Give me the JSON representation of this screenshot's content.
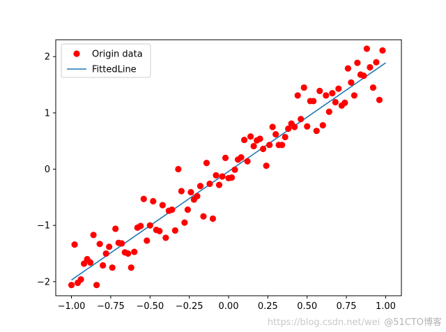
{
  "chart_data": {
    "type": "scatter",
    "title": "",
    "xlabel": "",
    "ylabel": "",
    "xlim": [
      -1.1,
      1.1
    ],
    "ylim": [
      -2.25,
      2.3
    ],
    "xticks": [
      -1.0,
      -0.75,
      -0.5,
      -0.25,
      0.0,
      0.25,
      0.5,
      0.75,
      1.0
    ],
    "yticks": [
      -2,
      -1,
      0,
      1,
      2
    ],
    "xtick_labels": [
      "−1.00",
      "−0.75",
      "−0.50",
      "−0.25",
      "0.00",
      "0.25",
      "0.50",
      "0.75",
      "1.00"
    ],
    "ytick_labels": [
      "−2",
      "−1",
      "0",
      "1",
      "2"
    ],
    "grid": false,
    "legend_placement": "top-left",
    "series": [
      {
        "name": "Origin data",
        "kind": "scatter",
        "color": "#ff0000",
        "points": [
          [
            -1.0,
            -2.06
          ],
          [
            -0.98,
            -1.34
          ],
          [
            -0.96,
            -2.02
          ],
          [
            -0.94,
            -1.96
          ],
          [
            -0.92,
            -1.68
          ],
          [
            -0.9,
            -1.6
          ],
          [
            -0.88,
            -1.66
          ],
          [
            -0.86,
            -1.17
          ],
          [
            -0.84,
            -2.06
          ],
          [
            -0.82,
            -1.33
          ],
          [
            -0.8,
            -1.71
          ],
          [
            -0.78,
            -1.5
          ],
          [
            -0.76,
            -1.38
          ],
          [
            -0.74,
            -1.75
          ],
          [
            -0.72,
            -1.06
          ],
          [
            -0.7,
            -1.31
          ],
          [
            -0.68,
            -1.32
          ],
          [
            -0.66,
            -1.48
          ],
          [
            -0.64,
            -1.5
          ],
          [
            -0.62,
            -1.75
          ],
          [
            -0.6,
            -1.47
          ],
          [
            -0.58,
            -1.04
          ],
          [
            -0.56,
            -1.01
          ],
          [
            -0.54,
            -0.53
          ],
          [
            -0.52,
            -1.27
          ],
          [
            -0.5,
            -1.0
          ],
          [
            -0.48,
            -0.57
          ],
          [
            -0.46,
            -1.08
          ],
          [
            -0.44,
            -1.1
          ],
          [
            -0.42,
            -0.64
          ],
          [
            -0.4,
            -1.22
          ],
          [
            -0.38,
            -0.74
          ],
          [
            -0.36,
            -0.72
          ],
          [
            -0.34,
            -1.09
          ],
          [
            -0.32,
            0.0
          ],
          [
            -0.3,
            -0.39
          ],
          [
            -0.28,
            -0.95
          ],
          [
            -0.26,
            -0.72
          ],
          [
            -0.24,
            -0.41
          ],
          [
            -0.22,
            -0.54
          ],
          [
            -0.2,
            -0.48
          ],
          [
            -0.18,
            -0.3
          ],
          [
            -0.16,
            -0.84
          ],
          [
            -0.14,
            0.11
          ],
          [
            -0.12,
            -0.26
          ],
          [
            -0.1,
            -0.88
          ],
          [
            -0.08,
            -0.11
          ],
          [
            -0.06,
            -0.28
          ],
          [
            -0.04,
            -0.13
          ],
          [
            -0.02,
            0.2
          ],
          [
            0.0,
            -0.16
          ],
          [
            0.02,
            -0.15
          ],
          [
            0.04,
            -0.01
          ],
          [
            0.06,
            0.17
          ],
          [
            0.08,
            0.21
          ],
          [
            0.1,
            0.52
          ],
          [
            0.12,
            0.14
          ],
          [
            0.14,
            0.58
          ],
          [
            0.16,
            0.41
          ],
          [
            0.18,
            0.51
          ],
          [
            0.2,
            0.54
          ],
          [
            0.22,
            0.36
          ],
          [
            0.24,
            0.06
          ],
          [
            0.26,
            0.43
          ],
          [
            0.28,
            0.75
          ],
          [
            0.3,
            0.62
          ],
          [
            0.32,
            0.43
          ],
          [
            0.34,
            0.43
          ],
          [
            0.36,
            0.57
          ],
          [
            0.38,
            0.72
          ],
          [
            0.4,
            0.81
          ],
          [
            0.42,
            0.75
          ],
          [
            0.44,
            1.31
          ],
          [
            0.46,
            0.89
          ],
          [
            0.48,
            1.45
          ],
          [
            0.5,
            0.76
          ],
          [
            0.52,
            1.21
          ],
          [
            0.54,
            1.21
          ],
          [
            0.56,
            0.68
          ],
          [
            0.58,
            1.39
          ],
          [
            0.6,
            0.78
          ],
          [
            0.62,
            1.31
          ],
          [
            0.64,
            1.02
          ],
          [
            0.66,
            1.35
          ],
          [
            0.68,
            1.19
          ],
          [
            0.7,
            1.43
          ],
          [
            0.72,
            1.13
          ],
          [
            0.74,
            1.18
          ],
          [
            0.76,
            1.79
          ],
          [
            0.78,
            1.54
          ],
          [
            0.8,
            1.31
          ],
          [
            0.82,
            1.89
          ],
          [
            0.84,
            1.68
          ],
          [
            0.86,
            1.66
          ],
          [
            0.88,
            2.14
          ],
          [
            0.9,
            1.81
          ],
          [
            0.92,
            1.45
          ],
          [
            0.94,
            1.9
          ],
          [
            0.96,
            1.23
          ],
          [
            0.98,
            2.11
          ]
        ]
      },
      {
        "name": "FittedLine",
        "kind": "line",
        "color": "#1f77b4",
        "x": [
          -1.0,
          1.0
        ],
        "y": [
          -1.97,
          1.89
        ]
      }
    ]
  },
  "watermark": {
    "url": "https://blog.csdn.net/wei",
    "brand": "@51CTO博客"
  }
}
